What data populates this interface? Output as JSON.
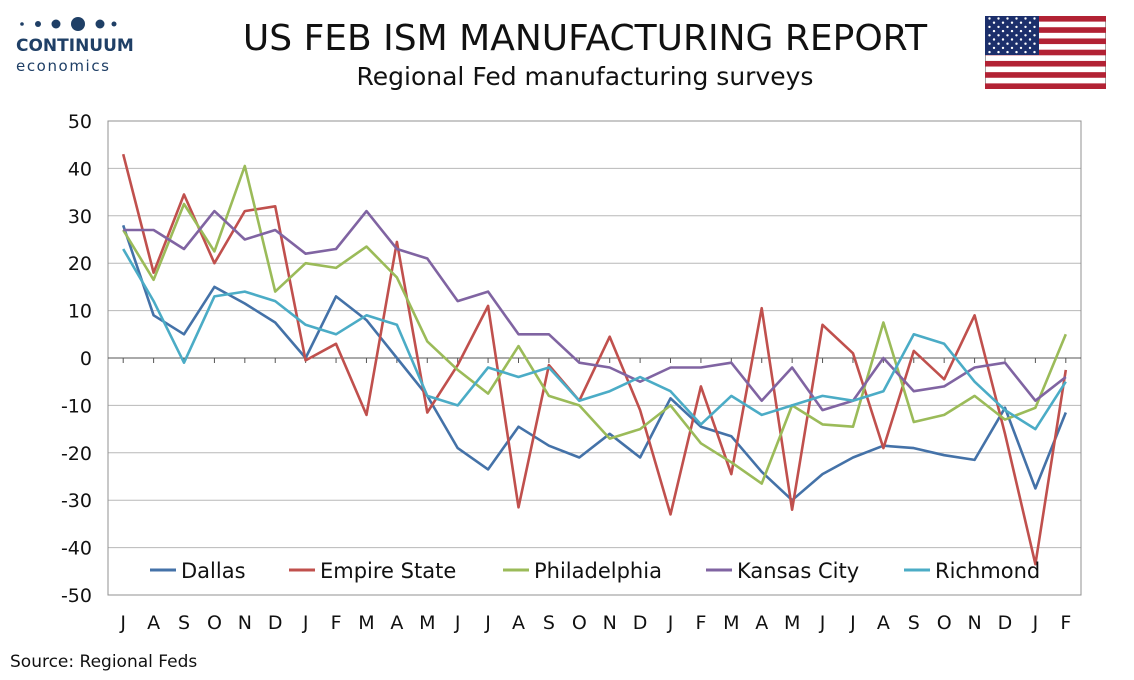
{
  "header": {
    "title": "US FEB ISM MANUFACTURING REPORT",
    "subtitle": "Regional Fed manufacturing surveys"
  },
  "logo": {
    "name": "CONTINUUM",
    "sub": "economics",
    "color": "#1f3f66"
  },
  "flag": {
    "icon": "us-flag-icon"
  },
  "source": "Source: Regional Feds",
  "chart_data": {
    "type": "line",
    "title": "",
    "xlabel": "",
    "ylabel": "",
    "ylim": [
      -50,
      50
    ],
    "yticks": [
      50,
      40,
      30,
      20,
      10,
      0,
      -10,
      -20,
      -30,
      -40,
      -50
    ],
    "grid": true,
    "legend": "bottom",
    "categories": [
      "J",
      "A",
      "S",
      "O",
      "N",
      "D",
      "J",
      "F",
      "M",
      "A",
      "M",
      "J",
      "J",
      "A",
      "S",
      "O",
      "N",
      "D",
      "J",
      "F",
      "M",
      "A",
      "M",
      "J",
      "J",
      "A",
      "S",
      "O",
      "N",
      "D",
      "J",
      "F"
    ],
    "series": [
      {
        "name": "Dallas",
        "color": "#4472a8",
        "values": [
          28,
          9,
          5,
          15,
          11.5,
          7.5,
          0,
          13,
          8,
          0,
          -8,
          -19,
          -23.5,
          -14.5,
          -18.5,
          -21,
          -16,
          -21,
          -8.5,
          -14.5,
          -16.5,
          -24,
          -30,
          -24.5,
          -21,
          -18.5,
          -19,
          -20.5,
          -21.5,
          -10.5,
          -27.5,
          -11.5
        ]
      },
      {
        "name": "Empire State",
        "color": "#c0504d",
        "values": [
          43,
          18,
          34.5,
          20,
          31,
          32,
          -0.5,
          3,
          -12,
          24.5,
          -11.5,
          -1.5,
          11,
          -31.5,
          -1.5,
          -9,
          4.5,
          -11,
          -33,
          -6,
          -24.5,
          10.5,
          -32,
          7,
          1,
          -19,
          1.5,
          -4.5,
          9,
          -16,
          -43.5,
          -2.5
        ]
      },
      {
        "name": "Philadelphia",
        "color": "#9bbb59",
        "values": [
          27,
          16.5,
          32.5,
          22.5,
          40.5,
          14,
          20,
          19,
          23.5,
          17,
          3.5,
          -2.5,
          -7.5,
          2.5,
          -8,
          -10,
          -17,
          -15,
          -10,
          -18,
          -22,
          -26.5,
          -10,
          -14,
          -14.5,
          7.5,
          -13.5,
          -12,
          -8,
          -13,
          -10.5,
          5
        ]
      },
      {
        "name": "Kansas City",
        "color": "#8064a2",
        "values": [
          27,
          27,
          23,
          31,
          25,
          27,
          22,
          23,
          31,
          23,
          21,
          12,
          14,
          5,
          5,
          -1,
          -2,
          -5,
          -2,
          -2,
          -1,
          -9,
          -2,
          -11,
          -9,
          0,
          -7,
          -6,
          -2,
          -1,
          -9,
          -4
        ]
      },
      {
        "name": "Richmond",
        "color": "#4bacc6",
        "values": [
          23,
          12,
          -1,
          13,
          14,
          12,
          7,
          5,
          9,
          7,
          -8,
          -10,
          -2,
          -4,
          -2,
          -9,
          -7,
          -4,
          -7,
          -14,
          -8,
          -12,
          -10,
          -8,
          -9,
          -7,
          5,
          3,
          -5,
          -11,
          -15,
          -5
        ]
      }
    ]
  }
}
